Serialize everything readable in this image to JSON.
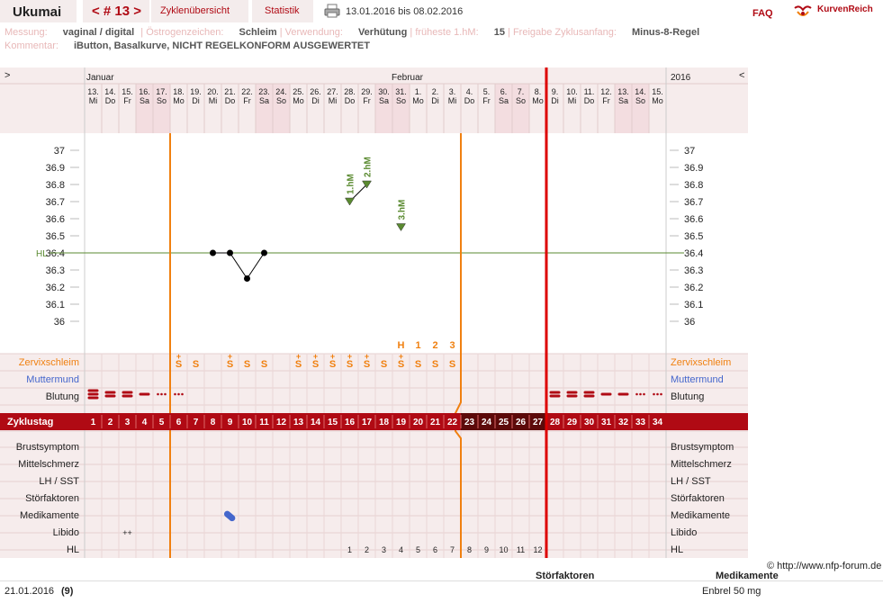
{
  "header": {
    "username": "Ukumai",
    "cycle_nav": "< # 13 >",
    "tab_overview": "Zyklenübersicht",
    "tab_stats": "Statistik",
    "date_range": "13.01.2016 bis 08.02.2016",
    "faq": "FAQ",
    "logo_text": "KurvenReich"
  },
  "info": {
    "messung_label": "Messung:",
    "messung_value": "vaginal / digital",
    "oestrogen_label": "Östrogenzeichen:",
    "oestrogen_value": "Schleim",
    "verwendung_label": "Verwendung:",
    "verwendung_value": "Verhütung",
    "hm_label": "früheste 1.hM:",
    "hm_value": "15",
    "freigabe_label": "Freigabe Zyklusanfang:",
    "freigabe_value": "Minus-8-Regel",
    "kommentar_label": "Kommentar:",
    "kommentar_value": "iButton, Basalkurve, NICHT REGELKONFORM AUSGEWERTET"
  },
  "chart": {
    "nav_left": ">",
    "nav_right": "<",
    "year": "2016",
    "month_jan": "Januar",
    "month_feb": "Februar",
    "days": [
      {
        "num": "13.",
        "wd": "Mi",
        "we": false
      },
      {
        "num": "14.",
        "wd": "Do",
        "we": false
      },
      {
        "num": "15.",
        "wd": "Fr",
        "we": false
      },
      {
        "num": "16.",
        "wd": "Sa",
        "we": true
      },
      {
        "num": "17.",
        "wd": "So",
        "we": true
      },
      {
        "num": "18.",
        "wd": "Mo",
        "we": false
      },
      {
        "num": "19.",
        "wd": "Di",
        "we": false
      },
      {
        "num": "20.",
        "wd": "Mi",
        "we": false
      },
      {
        "num": "21.",
        "wd": "Do",
        "we": false
      },
      {
        "num": "22.",
        "wd": "Fr",
        "we": false
      },
      {
        "num": "23.",
        "wd": "Sa",
        "we": true
      },
      {
        "num": "24.",
        "wd": "So",
        "we": true
      },
      {
        "num": "25.",
        "wd": "Mo",
        "we": false
      },
      {
        "num": "26.",
        "wd": "Di",
        "we": false
      },
      {
        "num": "27.",
        "wd": "Mi",
        "we": false
      },
      {
        "num": "28.",
        "wd": "Do",
        "we": false
      },
      {
        "num": "29.",
        "wd": "Fr",
        "we": false
      },
      {
        "num": "30.",
        "wd": "Sa",
        "we": true
      },
      {
        "num": "31.",
        "wd": "So",
        "we": true
      },
      {
        "num": "1.",
        "wd": "Mo",
        "we": false
      },
      {
        "num": "2.",
        "wd": "Di",
        "we": false
      },
      {
        "num": "3.",
        "wd": "Mi",
        "we": false
      },
      {
        "num": "4.",
        "wd": "Do",
        "we": false
      },
      {
        "num": "5.",
        "wd": "Fr",
        "we": false
      },
      {
        "num": "6.",
        "wd": "Sa",
        "we": true
      },
      {
        "num": "7.",
        "wd": "So",
        "we": true
      },
      {
        "num": "8.",
        "wd": "Mo",
        "we": false
      },
      {
        "num": "9.",
        "wd": "Di",
        "we": false
      },
      {
        "num": "10.",
        "wd": "Mi",
        "we": false
      },
      {
        "num": "11.",
        "wd": "Do",
        "we": false
      },
      {
        "num": "12.",
        "wd": "Fr",
        "we": false
      },
      {
        "num": "13.",
        "wd": "Sa",
        "we": true
      },
      {
        "num": "14.",
        "wd": "So",
        "we": true
      },
      {
        "num": "15.",
        "wd": "Mo",
        "we": false
      }
    ],
    "temp_ticks": [
      "37",
      "36.9",
      "36.8",
      "36.7",
      "36.6",
      "36.5",
      "36.4",
      "36.3",
      "36.2",
      "36.1",
      "36"
    ],
    "hl_label": "HL",
    "temperatures": [
      {
        "day": 8,
        "value": 36.4
      },
      {
        "day": 9,
        "value": 36.4
      },
      {
        "day": 10,
        "value": 36.25
      },
      {
        "day": 11,
        "value": 36.4
      }
    ],
    "hm_points": [
      {
        "day": 16,
        "value": 36.7,
        "label": "1.hM"
      },
      {
        "day": 17,
        "value": 36.8,
        "label": "2.hM"
      },
      {
        "day": 19,
        "value": 36.55,
        "label": "3.hM"
      }
    ],
    "hl_value": 36.4,
    "peak_markers": [
      "H",
      "1",
      "2",
      "3"
    ],
    "row_labels": {
      "zervix": "Zervixschleim",
      "muttermund": "Muttermund",
      "blutung": "Blutung",
      "zyklustag": "Zyklustag",
      "brust": "Brustsymptom",
      "mittel": "Mittelschmerz",
      "lh": "LH / SST",
      "stoer": "Störfaktoren",
      "medi": "Medikamente",
      "libido": "Libido",
      "hl": "HL"
    },
    "zervix": [
      {
        "day": 6,
        "sym": "S+"
      },
      {
        "day": 7,
        "sym": "S"
      },
      {
        "day": 9,
        "sym": "S+"
      },
      {
        "day": 10,
        "sym": "S"
      },
      {
        "day": 11,
        "sym": "S"
      },
      {
        "day": 13,
        "sym": "S+"
      },
      {
        "day": 14,
        "sym": "S+"
      },
      {
        "day": 15,
        "sym": "S+"
      },
      {
        "day": 16,
        "sym": "S+"
      },
      {
        "day": 17,
        "sym": "S+"
      },
      {
        "day": 18,
        "sym": "S"
      },
      {
        "day": 19,
        "sym": "S+"
      },
      {
        "day": 20,
        "sym": "S"
      },
      {
        "day": 21,
        "sym": "S"
      },
      {
        "day": 22,
        "sym": "S"
      }
    ],
    "bleeding": [
      {
        "day": 1,
        "level": "heavy"
      },
      {
        "day": 2,
        "level": "medium"
      },
      {
        "day": 3,
        "level": "medium"
      },
      {
        "day": 4,
        "level": "light"
      },
      {
        "day": 5,
        "level": "spot"
      },
      {
        "day": 6,
        "level": "spot"
      },
      {
        "day": 28,
        "level": "medium"
      },
      {
        "day": 29,
        "level": "medium"
      },
      {
        "day": 30,
        "level": "medium"
      },
      {
        "day": 31,
        "level": "light"
      },
      {
        "day": 32,
        "level": "light"
      },
      {
        "day": 33,
        "level": "spot"
      },
      {
        "day": 34,
        "level": "spot"
      }
    ],
    "cycle_days": [
      "1",
      "2",
      "3",
      "4",
      "5",
      "6",
      "7",
      "8",
      "9",
      "10",
      "11",
      "12",
      "13",
      "14",
      "15",
      "16",
      "17",
      "18",
      "19",
      "20",
      "21",
      "22",
      "23",
      "24",
      "25",
      "26",
      "27",
      "28",
      "29",
      "30",
      "31",
      "32",
      "33",
      "34"
    ],
    "libido": [
      {
        "day": 3,
        "text": "++"
      }
    ],
    "medication_day": 9,
    "hl_numbers": [
      {
        "day": 16,
        "text": "1"
      },
      {
        "day": 17,
        "text": "2"
      },
      {
        "day": 18,
        "text": "3"
      },
      {
        "day": 19,
        "text": "4"
      },
      {
        "day": 20,
        "text": "5"
      },
      {
        "day": 21,
        "text": "6"
      },
      {
        "day": 22,
        "text": "7"
      },
      {
        "day": 23,
        "text": "8"
      },
      {
        "day": 24,
        "text": "9"
      },
      {
        "day": 25,
        "text": "10"
      },
      {
        "day": 26,
        "text": "11"
      },
      {
        "day": 27,
        "text": "12"
      }
    ],
    "colors": {
      "accent": "#b00a14",
      "orange": "#f08010",
      "green": "#5a8a30",
      "blue": "#4466cc",
      "pink": "#f6ecec",
      "weekend": "#f3dde0"
    }
  },
  "footer": {
    "copyright": "© http://www.nfp-forum.de",
    "col_stoer": "Störfaktoren",
    "col_medi": "Medikamente",
    "date": "21.01.2016",
    "day_index": "(9)",
    "medication": "Enbrel 50 mg"
  }
}
